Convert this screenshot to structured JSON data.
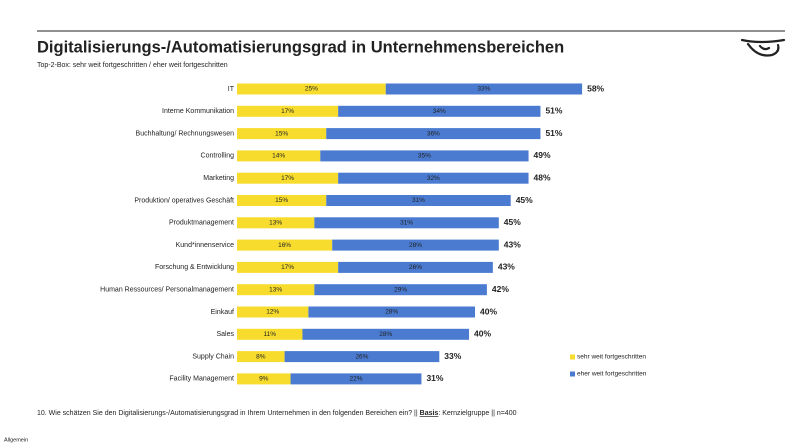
{
  "chart_data": {
    "type": "stacked-bar-horizontal",
    "title": "Digitalisierungs-/Automatisierungsgrad in Unternehmensbereichen",
    "subtitle": "Top-2-Box: sehr weit fortgeschritten / eher weit fortgeschritten",
    "categories": [
      "IT",
      "Interne Kommunikation",
      "Buchhaltung/ Rechnungswesen",
      "Controlling",
      "Marketing",
      "Produktion/ operatives Geschäft",
      "Produktmanagement",
      "Kund*innenservice",
      "Forschung & Entwicklung",
      "Human Ressources/ Personalmanagement",
      "Einkauf",
      "Sales",
      "Supply Chain",
      "Facility Management"
    ],
    "series": [
      {
        "name": "sehr weit fortgeschritten",
        "color": "#f7dc2e",
        "values": [
          25,
          17,
          15,
          14,
          17,
          15,
          13,
          16,
          17,
          13,
          12,
          11,
          8,
          9
        ],
        "value_labels": [
          "25%",
          "17%",
          "15%",
          "14%",
          "17%",
          "15%",
          "13%",
          "16%",
          "17%",
          "13%",
          "12%",
          "11%",
          "8%",
          "9%"
        ]
      },
      {
        "name": "eher weit fortgeschritten",
        "color": "#4a7bd0",
        "values": [
          33,
          34,
          36,
          35,
          32,
          31,
          31,
          28,
          26,
          29,
          28,
          28,
          26,
          22
        ],
        "value_labels": [
          "33%",
          "34%",
          "36%",
          "35%",
          "32%",
          "31%",
          "31%",
          "28%",
          "26%",
          "29%",
          "28%",
          "28%",
          "26%",
          "22%"
        ]
      }
    ],
    "totals": [
      58,
      51,
      51,
      49,
      48,
      45,
      45,
      43,
      43,
      42,
      40,
      40,
      33,
      31
    ],
    "total_labels": [
      "58%",
      "51%",
      "51%",
      "49%",
      "48%",
      "45%",
      "45%",
      "43%",
      "43%",
      "42%",
      "40%",
      "40%",
      "33%",
      "31%"
    ],
    "footnote": {
      "pre": "10. Wie schätzen Sie den Digitalisierungs-/Automatisierungsgrad in Ihrem Unternehmen in den folgenden Bereichen ein? || ",
      "basis": "Basis",
      "post": ": Kernzielgruppe || n=400"
    },
    "classification": "Allgemein"
  }
}
